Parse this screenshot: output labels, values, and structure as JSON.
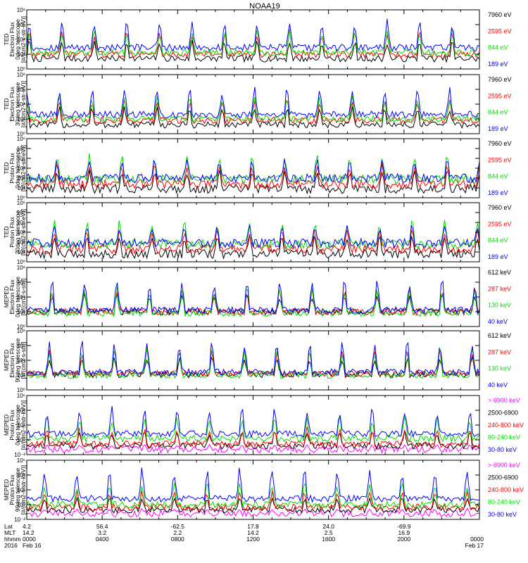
{
  "title": "NOAA19",
  "colors": {
    "black": "#000000",
    "red": "#ff0000",
    "green": "#00dd00",
    "blue": "#0000ff",
    "magenta": "#ff00ff"
  },
  "chart_data": {
    "type": "line",
    "title": "NOAA19",
    "x_axis": {
      "hhmm_ticks": [
        "0000",
        "0400",
        "0800",
        "1200",
        "1600",
        "2000",
        "0000"
      ],
      "hours": [
        0,
        4,
        8,
        12,
        16,
        20,
        24
      ],
      "range_hours": [
        0,
        24
      ],
      "rows": [
        {
          "label": "Lat",
          "values": [
            "4.2",
            "56.4",
            "-62.5",
            "17.8",
            "24.0",
            "-69.9",
            ""
          ]
        },
        {
          "label": "MLT",
          "values": [
            "14.2",
            "3.2",
            "2.2",
            "14.2",
            "2.5",
            "16.9",
            ""
          ]
        },
        {
          "label": "hhmm",
          "values": [
            "0000",
            "0400",
            "0800",
            "1200",
            "1600",
            "2000",
            "0000"
          ]
        },
        {
          "label": "2016",
          "values": [
            "Feb 16",
            "",
            "",
            "",
            "",
            "",
            "Feb 17"
          ]
        }
      ]
    },
    "panels": [
      {
        "instrument": "TED",
        "ylabel": [
          "Electron Flux",
          "0deg telescope",
          "[#/(cm2-s-str-eV)]"
        ],
        "log_scale": true,
        "ylim_exp": [
          0,
          8
        ],
        "tick_labels": [
          "10⁰",
          "10²",
          "10⁴",
          "10⁶",
          "10⁸"
        ],
        "series": [
          {
            "name": "7960 eV",
            "color": "#000000",
            "base": 1.4,
            "peak": 4.2
          },
          {
            "name": "2595 eV",
            "color": "#ff0000",
            "base": 2.0,
            "peak": 5.4
          },
          {
            "name": "844 eV",
            "color": "#00dd00",
            "base": 2.2,
            "peak": 5.6
          },
          {
            "name": "189 eV",
            "color": "#0000ff",
            "base": 2.9,
            "peak": 6.8
          }
        ]
      },
      {
        "instrument": "TED",
        "ylabel": [
          "Electron Flux",
          "30deg telescope",
          "[#/(cm2-s-str-eV)]"
        ],
        "log_scale": true,
        "ylim_exp": [
          0,
          8
        ],
        "tick_labels": [
          "10⁰",
          "10²",
          "10⁴",
          "10⁶",
          "10⁸"
        ],
        "series": [
          {
            "name": "7960 eV",
            "color": "#000000",
            "base": 1.2,
            "peak": 3.9
          },
          {
            "name": "2595 eV",
            "color": "#ff0000",
            "base": 1.8,
            "peak": 5.0
          },
          {
            "name": "844 eV",
            "color": "#00dd00",
            "base": 2.0,
            "peak": 5.3
          },
          {
            "name": "189 eV",
            "color": "#0000ff",
            "base": 2.6,
            "peak": 6.5
          }
        ]
      },
      {
        "instrument": "TED",
        "ylabel": [
          "Proton Flux",
          "0deg telescope",
          "[#/(cm2-s-str-eV)]"
        ],
        "log_scale": true,
        "ylim_exp": [
          0,
          6
        ],
        "tick_labels": [
          "10⁰",
          "10¹",
          "10²",
          "10³",
          "10⁴",
          "10⁵",
          "10⁶"
        ],
        "series": [
          {
            "name": "7960 eV",
            "color": "#000000",
            "base": 0.9,
            "peak": 3.0
          },
          {
            "name": "2595 eV",
            "color": "#ff0000",
            "base": 1.4,
            "peak": 3.6
          },
          {
            "name": "844 eV",
            "color": "#00dd00",
            "base": 1.9,
            "peak": 4.6
          },
          {
            "name": "189 eV",
            "color": "#0000ff",
            "base": 2.0,
            "peak": 4.0
          }
        ]
      },
      {
        "instrument": "TED",
        "ylabel": [
          "Proton Flux",
          "30deg telescope",
          "[#/(cm2-s-str-eV)]"
        ],
        "log_scale": true,
        "ylim_exp": [
          0,
          6
        ],
        "tick_labels": [
          "10⁰",
          "10¹",
          "10²",
          "10³",
          "10⁴",
          "10⁵",
          "10⁶"
        ],
        "series": [
          {
            "name": "7960 eV",
            "color": "#000000",
            "base": 0.8,
            "peak": 2.9
          },
          {
            "name": "2595 eV",
            "color": "#ff0000",
            "base": 1.3,
            "peak": 3.5
          },
          {
            "name": "844 eV",
            "color": "#00dd00",
            "base": 1.8,
            "peak": 4.4
          },
          {
            "name": "189 eV",
            "color": "#0000ff",
            "base": 1.9,
            "peak": 3.9
          }
        ]
      },
      {
        "instrument": "MEPED",
        "ylabel": [
          "Electron Flux",
          "0deg telescope",
          "[#/(cm2-s-str)]"
        ],
        "log_scale": true,
        "ylim_exp": [
          0,
          8
        ],
        "tick_labels": [
          "10⁰",
          "10²",
          "10⁴",
          "10⁶",
          "10⁸"
        ],
        "series": [
          {
            "name": "612 keV",
            "color": "#000000",
            "base": 2.0,
            "peak": 4.6
          },
          {
            "name": "287 keV",
            "color": "#ff0000",
            "base": 2.0,
            "peak": 5.4
          },
          {
            "name": "130 keV",
            "color": "#00dd00",
            "base": 1.8,
            "peak": 5.6
          },
          {
            "name": "40 keV",
            "color": "#0000ff",
            "base": 2.2,
            "peak": 6.8
          }
        ]
      },
      {
        "instrument": "MEPED",
        "ylabel": [
          "Electron Flux",
          "90deg telescope",
          "[#/(cm2-s-str)]"
        ],
        "log_scale": true,
        "ylim_exp": [
          0,
          8
        ],
        "tick_labels": [
          "10⁰",
          "10²",
          "10⁴",
          "10⁶",
          "10⁸"
        ],
        "series": [
          {
            "name": "612 keV",
            "color": "#000000",
            "base": 2.1,
            "peak": 4.8
          },
          {
            "name": "287 keV",
            "color": "#ff0000",
            "base": 2.2,
            "peak": 5.8
          },
          {
            "name": "130 keV",
            "color": "#00dd00",
            "base": 2.0,
            "peak": 6.0
          },
          {
            "name": "40 keV",
            "color": "#0000ff",
            "base": 2.4,
            "peak": 7.0
          }
        ]
      },
      {
        "instrument": "MEPED",
        "ylabel": [
          "Proton Flux",
          "0deg telescope",
          "[#/(cm2-s-str-keV)]"
        ],
        "log_scale": true,
        "ylim_exp": [
          -2,
          6
        ],
        "tick_labels": [
          "10⁻²",
          "10⁰",
          "10²",
          "10⁴",
          "10⁶"
        ],
        "series": [
          {
            "name": "> 6900 keV",
            "color": "#ff00ff",
            "base": -1.3,
            "peak": -0.6
          },
          {
            "name": "2500-6900",
            "color": "#000000",
            "base": -0.8,
            "peak": 1.3
          },
          {
            "name": "240-800 keV",
            "color": "#ff0000",
            "base": -0.6,
            "peak": 1.8
          },
          {
            "name": "80-240 keV",
            "color": "#00dd00",
            "base": 0.2,
            "peak": 3.4
          },
          {
            "name": "30-80 keV",
            "color": "#0000ff",
            "base": 0.8,
            "peak": 4.6
          }
        ]
      },
      {
        "instrument": "MEPED",
        "ylabel": [
          "Proton Flux",
          "90deg telescope",
          "[#/(cm2-s-str-keV)]"
        ],
        "log_scale": true,
        "ylim_exp": [
          -2,
          6
        ],
        "tick_labels": [
          "10⁻²",
          "10⁰",
          "10²",
          "10⁴",
          "10⁶"
        ],
        "series": [
          {
            "name": "> 6900 keV",
            "color": "#ff00ff",
            "base": -1.2,
            "peak": -0.5
          },
          {
            "name": "2500-6900",
            "color": "#000000",
            "base": -0.7,
            "peak": 1.2
          },
          {
            "name": "240-800 keV",
            "color": "#ff0000",
            "base": -0.4,
            "peak": 2.0
          },
          {
            "name": "80-240 keV",
            "color": "#00dd00",
            "base": 0.0,
            "peak": 3.2
          },
          {
            "name": "30-80 keV",
            "color": "#0000ff",
            "base": 0.8,
            "peak": 5.2
          }
        ]
      }
    ]
  }
}
